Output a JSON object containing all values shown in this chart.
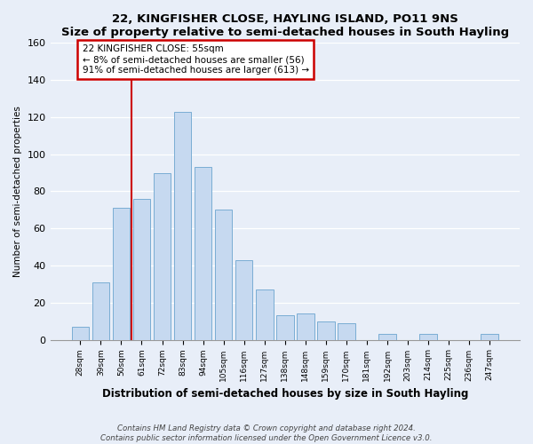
{
  "title": "22, KINGFISHER CLOSE, HAYLING ISLAND, PO11 9NS",
  "subtitle": "Size of property relative to semi-detached houses in South Hayling",
  "xlabel": "Distribution of semi-detached houses by size in South Hayling",
  "ylabel": "Number of semi-detached properties",
  "categories": [
    "28sqm",
    "39sqm",
    "50sqm",
    "61sqm",
    "72sqm",
    "83sqm",
    "94sqm",
    "105sqm",
    "116sqm",
    "127sqm",
    "138sqm",
    "148sqm",
    "159sqm",
    "170sqm",
    "181sqm",
    "192sqm",
    "203sqm",
    "214sqm",
    "225sqm",
    "236sqm",
    "247sqm"
  ],
  "values": [
    7,
    31,
    71,
    76,
    90,
    123,
    93,
    70,
    43,
    27,
    13,
    14,
    10,
    9,
    0,
    3,
    0,
    3,
    0,
    0,
    3
  ],
  "bar_color": "#c6d9f0",
  "bar_edge_color": "#7aadd4",
  "redline_x": 2.5,
  "redline_label": "22 KINGFISHER CLOSE: 55sqm",
  "annotation_line1": "← 8% of semi-detached houses are smaller (56)",
  "annotation_line2": "91% of semi-detached houses are larger (613) →",
  "ylim": [
    0,
    160
  ],
  "yticks": [
    0,
    20,
    40,
    60,
    80,
    100,
    120,
    140,
    160
  ],
  "footnote1": "Contains HM Land Registry data © Crown copyright and database right 2024.",
  "footnote2": "Contains public sector information licensed under the Open Government Licence v3.0.",
  "bg_color": "#e8eef8",
  "plot_bg_color": "#e8eef8",
  "grid_color": "#ffffff",
  "annotation_box_color": "white",
  "annotation_border_color": "#cc0000",
  "red_line_color": "#cc0000"
}
